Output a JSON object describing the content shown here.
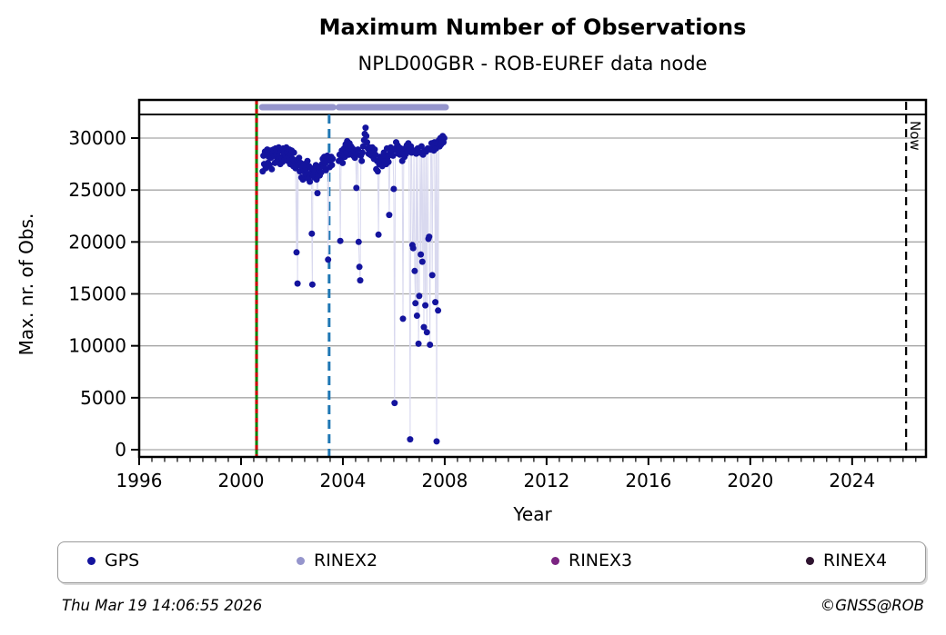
{
  "header": {
    "title": "Maximum Number of Observations",
    "subtitle": "NPLD00GBR - ROB-EUREF data node"
  },
  "footer": {
    "timestamp": "Thu Mar 19 14:06:55 2026",
    "credit": "©GNSS@ROB"
  },
  "legend": {
    "items": [
      {
        "label": "GPS",
        "color": "#14149E"
      },
      {
        "label": "RINEX2",
        "color": "#9595CC"
      },
      {
        "label": "RINEX3",
        "color": "#7B2482"
      },
      {
        "label": "RINEX4",
        "color": "#2E1430"
      }
    ]
  },
  "chart_data": {
    "type": "scatter",
    "title": "Maximum Number of Observations",
    "subtitle": "NPLD00GBR - ROB-EUREF data node",
    "xlabel": "Year",
    "ylabel": "Max. nr. of Obs.",
    "xlim": [
      1996,
      2026.9
    ],
    "ylim": [
      0,
      33700
    ],
    "x_ticks": [
      1996,
      2000,
      2004,
      2008,
      2012,
      2016,
      2020,
      2024
    ],
    "x_minor_step": 0.5,
    "y_ticks": [
      0,
      5000,
      10000,
      15000,
      20000,
      25000,
      30000
    ],
    "grid": true,
    "legend_position": "bottom",
    "now_line": {
      "year": 2026.12,
      "label": "Now",
      "color": "#000000",
      "style": "dashed"
    },
    "vlines": [
      {
        "year": 2000.61,
        "color": "#008000",
        "overlay_color": "#CC0000",
        "style": "solid-with-red-dashes"
      },
      {
        "year": 2003.46,
        "color": "#1F77B4",
        "style": "dashed"
      }
    ],
    "availability_bars": {
      "series": "RINEX2",
      "color": "#9595CC",
      "intervals": [
        [
          2000.83,
          2003.62
        ],
        [
          2003.84,
          2008.04
        ]
      ]
    },
    "series": [
      {
        "name": "GPS",
        "color": "#14149E",
        "line_color": "#D9D9EF",
        "points": [
          [
            2000.85,
            26800
          ],
          [
            2000.88,
            28300
          ],
          [
            2000.91,
            27500
          ],
          [
            2000.94,
            28700
          ],
          [
            2000.97,
            27100
          ],
          [
            2001.0,
            28500
          ],
          [
            2001.03,
            28900
          ],
          [
            2001.06,
            27600
          ],
          [
            2001.09,
            28200
          ],
          [
            2001.12,
            27400
          ],
          [
            2001.15,
            28800
          ],
          [
            2001.18,
            28100
          ],
          [
            2001.21,
            27000
          ],
          [
            2001.24,
            28500
          ],
          [
            2001.27,
            28900
          ],
          [
            2001.3,
            28300
          ],
          [
            2001.33,
            27600
          ],
          [
            2001.36,
            29000
          ],
          [
            2001.39,
            28400
          ],
          [
            2001.42,
            27900
          ],
          [
            2001.45,
            28700
          ],
          [
            2001.48,
            29100
          ],
          [
            2001.51,
            28200
          ],
          [
            2001.54,
            27500
          ],
          [
            2001.57,
            28800
          ],
          [
            2001.6,
            28100
          ],
          [
            2001.63,
            27700
          ],
          [
            2001.66,
            29000
          ],
          [
            2001.69,
            28500
          ],
          [
            2001.72,
            27900
          ],
          [
            2001.75,
            28300
          ],
          [
            2001.78,
            29100
          ],
          [
            2001.81,
            28600
          ],
          [
            2001.84,
            27800
          ],
          [
            2001.87,
            28200
          ],
          [
            2001.9,
            28900
          ],
          [
            2001.93,
            27500
          ],
          [
            2001.96,
            28400
          ],
          [
            2001.99,
            28800
          ],
          [
            2002.02,
            28000
          ],
          [
            2002.05,
            27300
          ],
          [
            2002.08,
            28600
          ],
          [
            2002.11,
            27800
          ],
          [
            2002.14,
            27100
          ],
          [
            2002.18,
            19000
          ],
          [
            2002.2,
            27900
          ],
          [
            2002.22,
            16000
          ],
          [
            2002.25,
            27400
          ],
          [
            2002.28,
            28100
          ],
          [
            2002.31,
            26800
          ],
          [
            2002.34,
            27600
          ],
          [
            2002.37,
            26200
          ],
          [
            2002.4,
            27200
          ],
          [
            2002.43,
            26000
          ],
          [
            2002.46,
            26800
          ],
          [
            2002.49,
            27500
          ],
          [
            2002.52,
            26300
          ],
          [
            2002.55,
            27000
          ],
          [
            2002.58,
            26500
          ],
          [
            2002.61,
            27800
          ],
          [
            2002.64,
            26100
          ],
          [
            2002.67,
            27300
          ],
          [
            2002.7,
            25800
          ],
          [
            2002.73,
            26600
          ],
          [
            2002.76,
            27100
          ],
          [
            2002.78,
            20800
          ],
          [
            2002.8,
            15900
          ],
          [
            2002.82,
            26400
          ],
          [
            2002.85,
            27000
          ],
          [
            2002.88,
            26200
          ],
          [
            2002.91,
            26800
          ],
          [
            2002.94,
            27400
          ],
          [
            2002.97,
            26000
          ],
          [
            2003.0,
            24700
          ],
          [
            2003.03,
            26600
          ],
          [
            2003.06,
            27000
          ],
          [
            2003.09,
            26400
          ],
          [
            2003.12,
            27200
          ],
          [
            2003.15,
            26700
          ],
          [
            2003.18,
            27500
          ],
          [
            2003.21,
            28000
          ],
          [
            2003.24,
            27300
          ],
          [
            2003.27,
            28200
          ],
          [
            2003.3,
            27600
          ],
          [
            2003.33,
            26900
          ],
          [
            2003.36,
            27800
          ],
          [
            2003.39,
            28300
          ],
          [
            2003.42,
            18300
          ],
          [
            2003.45,
            28000
          ],
          [
            2003.48,
            27200
          ],
          [
            2003.51,
            27800
          ],
          [
            2003.54,
            28200
          ],
          [
            2003.57,
            27400
          ],
          [
            2003.6,
            28000
          ],
          [
            2003.84,
            27800
          ],
          [
            2003.87,
            28400
          ],
          [
            2003.9,
            20100
          ],
          [
            2003.93,
            28000
          ],
          [
            2003.96,
            28800
          ],
          [
            2003.99,
            27600
          ],
          [
            2004.02,
            28300
          ],
          [
            2004.05,
            29000
          ],
          [
            2004.08,
            28200
          ],
          [
            2004.11,
            29400
          ],
          [
            2004.14,
            28600
          ],
          [
            2004.17,
            29700
          ],
          [
            2004.2,
            29000
          ],
          [
            2004.23,
            28400
          ],
          [
            2004.26,
            29500
          ],
          [
            2004.29,
            28800
          ],
          [
            2004.32,
            29200
          ],
          [
            2004.35,
            28500
          ],
          [
            2004.38,
            29000
          ],
          [
            2004.41,
            28300
          ],
          [
            2004.44,
            28800
          ],
          [
            2004.47,
            28100
          ],
          [
            2004.5,
            28600
          ],
          [
            2004.53,
            25200
          ],
          [
            2004.56,
            28400
          ],
          [
            2004.59,
            28900
          ],
          [
            2004.62,
            20000
          ],
          [
            2004.65,
            17600
          ],
          [
            2004.68,
            16300
          ],
          [
            2004.71,
            28300
          ],
          [
            2004.74,
            27800
          ],
          [
            2004.77,
            28600
          ],
          [
            2004.8,
            29200
          ],
          [
            2004.83,
            29800
          ],
          [
            2004.86,
            30400
          ],
          [
            2004.89,
            31000
          ],
          [
            2004.92,
            30200
          ],
          [
            2004.95,
            29600
          ],
          [
            2004.98,
            29000
          ],
          [
            2005.01,
            28500
          ],
          [
            2005.04,
            29100
          ],
          [
            2005.07,
            28400
          ],
          [
            2005.1,
            29000
          ],
          [
            2005.13,
            28300
          ],
          [
            2005.16,
            29100
          ],
          [
            2005.19,
            28700
          ],
          [
            2005.22,
            28000
          ],
          [
            2005.25,
            28900
          ],
          [
            2005.28,
            28400
          ],
          [
            2005.31,
            27000
          ],
          [
            2005.34,
            27800
          ],
          [
            2005.37,
            26800
          ],
          [
            2005.4,
            20700
          ],
          [
            2005.43,
            27500
          ],
          [
            2005.46,
            28200
          ],
          [
            2005.49,
            27600
          ],
          [
            2005.52,
            28100
          ],
          [
            2005.55,
            27300
          ],
          [
            2005.58,
            28000
          ],
          [
            2005.61,
            28600
          ],
          [
            2005.64,
            27800
          ],
          [
            2005.67,
            28300
          ],
          [
            2005.7,
            27500
          ],
          [
            2005.73,
            29000
          ],
          [
            2005.76,
            28200
          ],
          [
            2005.79,
            27700
          ],
          [
            2005.82,
            22600
          ],
          [
            2005.85,
            28500
          ],
          [
            2005.88,
            29100
          ],
          [
            2005.91,
            28400
          ],
          [
            2005.94,
            28800
          ],
          [
            2005.97,
            28300
          ],
          [
            2006.0,
            25100
          ],
          [
            2006.03,
            4500
          ],
          [
            2006.06,
            29000
          ],
          [
            2006.09,
            29600
          ],
          [
            2006.12,
            28800
          ],
          [
            2006.15,
            29300
          ],
          [
            2006.18,
            28500
          ],
          [
            2006.21,
            29100
          ],
          [
            2006.24,
            28400
          ],
          [
            2006.27,
            29000
          ],
          [
            2006.3,
            28600
          ],
          [
            2006.33,
            27800
          ],
          [
            2006.36,
            12600
          ],
          [
            2006.39,
            28800
          ],
          [
            2006.42,
            28200
          ],
          [
            2006.45,
            29000
          ],
          [
            2006.48,
            28500
          ],
          [
            2006.51,
            29300
          ],
          [
            2006.54,
            28700
          ],
          [
            2006.57,
            29500
          ],
          [
            2006.6,
            28900
          ],
          [
            2006.64,
            1000
          ],
          [
            2006.67,
            29200
          ],
          [
            2006.7,
            28600
          ],
          [
            2006.73,
            19700
          ],
          [
            2006.76,
            19400
          ],
          [
            2006.79,
            28800
          ],
          [
            2006.82,
            17200
          ],
          [
            2006.85,
            14100
          ],
          [
            2006.88,
            28500
          ],
          [
            2006.91,
            12900
          ],
          [
            2006.94,
            29000
          ],
          [
            2006.97,
            10200
          ],
          [
            2007.0,
            14800
          ],
          [
            2007.03,
            28600
          ],
          [
            2007.06,
            18800
          ],
          [
            2007.09,
            29200
          ],
          [
            2007.12,
            18100
          ],
          [
            2007.15,
            28400
          ],
          [
            2007.18,
            11800
          ],
          [
            2007.21,
            28800
          ],
          [
            2007.24,
            13900
          ],
          [
            2007.27,
            28700
          ],
          [
            2007.3,
            11300
          ],
          [
            2007.33,
            29000
          ],
          [
            2007.36,
            20300
          ],
          [
            2007.39,
            20500
          ],
          [
            2007.42,
            10100
          ],
          [
            2007.45,
            28900
          ],
          [
            2007.48,
            29500
          ],
          [
            2007.51,
            16800
          ],
          [
            2007.54,
            29300
          ],
          [
            2007.57,
            28800
          ],
          [
            2007.6,
            29600
          ],
          [
            2007.63,
            14200
          ],
          [
            2007.66,
            29000
          ],
          [
            2007.68,
            800
          ],
          [
            2007.71,
            29500
          ],
          [
            2007.74,
            13400
          ],
          [
            2007.77,
            29800
          ],
          [
            2007.8,
            29200
          ],
          [
            2007.83,
            30000
          ],
          [
            2007.86,
            29400
          ],
          [
            2007.89,
            29800
          ],
          [
            2007.92,
            30200
          ],
          [
            2007.95,
            29600
          ],
          [
            2007.98,
            30000
          ]
        ]
      }
    ]
  }
}
